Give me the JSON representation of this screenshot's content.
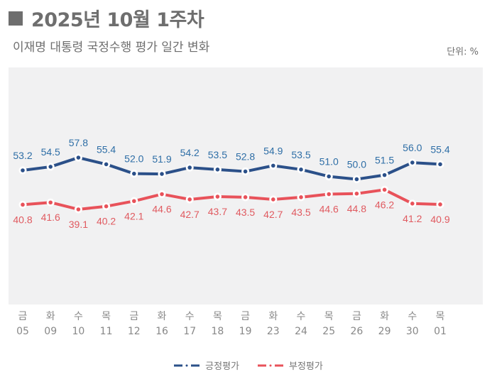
{
  "header": {
    "title": "2025년 10월 1주차",
    "subtitle": "이재명 대통령 국정수행 평가 일간 변화",
    "unit": "단위: %"
  },
  "colors": {
    "positive": "#2b5089",
    "positive_label": "#2e6ea6",
    "negative": "#e8525a",
    "negative_label": "#e05a60",
    "plot_bg": "#f1f1f2",
    "title": "#6e6e6e"
  },
  "chart_data": {
    "type": "line",
    "title": "2025년 10월 1주차",
    "subtitle": "이재명 대통령 국정수행 평가 일간 변화",
    "unit": "%",
    "categories": [
      "05",
      "09",
      "10",
      "11",
      "12",
      "16",
      "17",
      "18",
      "19",
      "23",
      "24",
      "25",
      "26",
      "29",
      "30",
      "01"
    ],
    "weekdays": [
      "금",
      "화",
      "수",
      "목",
      "금",
      "화",
      "수",
      "목",
      "금",
      "화",
      "수",
      "목",
      "금",
      "화",
      "수",
      "목"
    ],
    "series": [
      {
        "name": "긍정평가",
        "values": [
          53.2,
          54.5,
          57.8,
          55.4,
          52.0,
          51.9,
          54.2,
          53.5,
          52.8,
          54.9,
          53.5,
          51.0,
          50.0,
          51.5,
          56.0,
          55.4
        ]
      },
      {
        "name": "부정평가",
        "values": [
          40.8,
          41.6,
          39.1,
          40.2,
          42.1,
          44.6,
          42.7,
          43.7,
          43.5,
          42.7,
          43.5,
          44.6,
          44.8,
          46.2,
          41.2,
          40.9
        ]
      }
    ],
    "labels": {
      "positive": [
        "53.2",
        "54.5",
        "57.8",
        "55.4",
        "52.0",
        "51.9",
        "54.2",
        "53.5",
        "52.8",
        "54.9",
        "53.5",
        "51.0",
        "50.0",
        "51.5",
        "56.0",
        "55.4"
      ],
      "negative": [
        "40.8",
        "41.6",
        "39.1",
        "40.2",
        "42.1",
        "44.6",
        "42.7",
        "43.7",
        "43.5",
        "42.7",
        "43.5",
        "44.6",
        "44.8",
        "46.2",
        "41.2",
        "40.9"
      ]
    },
    "xlabel": "",
    "ylabel": "",
    "grid": false,
    "legend": "bottom-center"
  },
  "legend": {
    "positive": "긍정평가",
    "negative": "부정평가"
  }
}
